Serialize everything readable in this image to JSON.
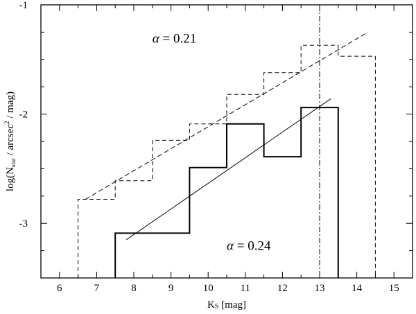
{
  "chart_data": {
    "type": "line",
    "xlabel": {
      "main": "K",
      "sub": "S",
      "rest": " [mag]"
    },
    "ylabel": {
      "pre": "log(N",
      "sub": "star",
      "mid": " / arcsec",
      "sup": "2",
      "post": " / mag)"
    },
    "xlim": [
      5.5,
      15.5
    ],
    "ylim": [
      -3.5,
      -1.0
    ],
    "x_ticks": [
      "6",
      "7",
      "8",
      "9",
      "10",
      "11",
      "12",
      "13",
      "14",
      "15"
    ],
    "y_ticks": [
      "-1",
      "-2",
      "-3"
    ],
    "grid": false,
    "series": [
      {
        "style": "dashed-step",
        "bins": [
          {
            "x0": 6.5,
            "x1": 7.5,
            "y": -2.78
          },
          {
            "x0": 7.5,
            "x1": 8.5,
            "y": -2.61
          },
          {
            "x0": 8.5,
            "x1": 9.5,
            "y": -2.24
          },
          {
            "x0": 9.5,
            "x1": 10.5,
            "y": -2.09
          },
          {
            "x0": 10.5,
            "x1": 11.5,
            "y": -1.82
          },
          {
            "x0": 11.5,
            "x1": 12.5,
            "y": -1.62
          },
          {
            "x0": 12.5,
            "x1": 13.5,
            "y": -1.37
          },
          {
            "x0": 13.5,
            "x1": 14.5,
            "y": -1.47
          }
        ]
      },
      {
        "style": "solid-step",
        "bins": [
          {
            "x0": 7.5,
            "x1": 9.5,
            "y": -3.09
          },
          {
            "x0": 9.5,
            "x1": 10.5,
            "y": -2.49
          },
          {
            "x0": 10.5,
            "x1": 11.5,
            "y": -2.09
          },
          {
            "x0": 11.5,
            "x1": 12.5,
            "y": -2.39
          },
          {
            "x0": 12.5,
            "x1": 13.5,
            "y": -1.94
          }
        ]
      },
      {
        "style": "dashed-fit",
        "x": [
          6.7,
          14.3
        ],
        "y": [
          -2.78,
          -1.25
        ]
      },
      {
        "style": "solid-fit",
        "x": [
          7.8,
          13.3
        ],
        "y": [
          -3.15,
          -1.86
        ]
      }
    ],
    "vline": {
      "x": 13.0,
      "style": "dash-dot"
    },
    "annotations": [
      {
        "symbol": "α",
        "text": " = 0.21",
        "x": 8.5,
        "y": -1.3
      },
      {
        "symbol": "α",
        "text": " = 0.24",
        "x": 10.5,
        "y": -3.2
      }
    ]
  }
}
